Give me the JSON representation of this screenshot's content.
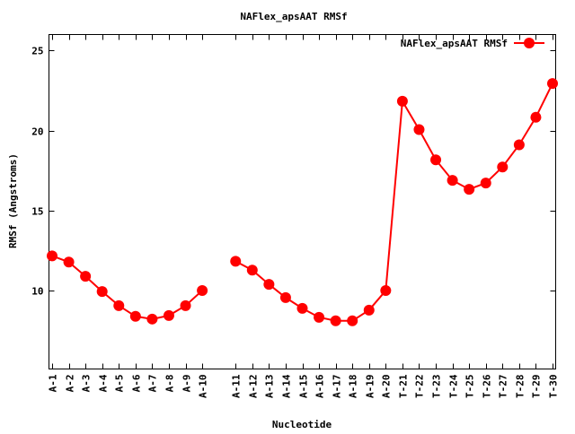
{
  "chart_data": {
    "type": "line",
    "title": "NAFlex_apsAAT RMSf",
    "xlabel": "Nucleotide",
    "ylabel": "RMSf (Angstroms)",
    "ylim": [
      5.1,
      26
    ],
    "yticks": [
      10,
      15,
      20,
      25
    ],
    "legend": "top-right",
    "grid": false,
    "categories": [
      "A-1",
      "A-2",
      "A-3",
      "A-4",
      "A-5",
      "A-6",
      "A-7",
      "A-8",
      "A-9",
      "A-10",
      "",
      "A-11",
      "A-12",
      "A-13",
      "A-14",
      "A-15",
      "A-16",
      "A-17",
      "A-18",
      "A-19",
      "A-20",
      "T-21",
      "T-22",
      "T-23",
      "T-24",
      "T-25",
      "T-26",
      "T-27",
      "T-28",
      "T-29",
      "T-30"
    ],
    "series": [
      {
        "name": "NAFlex_apsAAT RMSf",
        "color": "#ff0000",
        "values": [
          12.17,
          11.78,
          10.89,
          9.94,
          9.06,
          8.39,
          8.22,
          8.44,
          9.06,
          10.0,
          null,
          11.83,
          11.28,
          10.39,
          9.56,
          8.89,
          8.33,
          8.11,
          8.11,
          8.78,
          10.0,
          21.83,
          20.06,
          18.17,
          16.89,
          16.33,
          16.72,
          17.72,
          19.11,
          20.83,
          22.94
        ]
      }
    ]
  }
}
